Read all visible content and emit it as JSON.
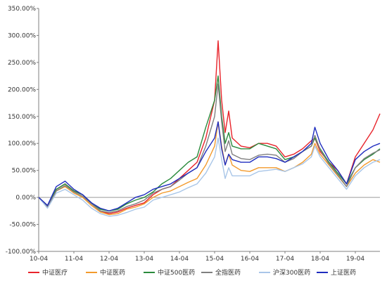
{
  "chart_data": {
    "type": "line",
    "title": "",
    "xlabel": "",
    "ylabel": "",
    "ylim": [
      -100,
      350
    ],
    "y_tick_labels": [
      "350.00%",
      "300.00%",
      "250.00%",
      "200.00%",
      "150.00%",
      "100.00%",
      "50.00%",
      "0.00%",
      "-50.00%",
      "-100.00%"
    ],
    "x_tick_labels": [
      "10-04",
      "11-04",
      "12-04",
      "13-04",
      "14-04",
      "15-04",
      "16-04",
      "17-04",
      "18-04",
      "19-04"
    ],
    "grid": false,
    "legend_position": "bottom",
    "x": [
      2010.25,
      2010.5,
      2010.75,
      2011.0,
      2011.25,
      2011.5,
      2011.75,
      2012.0,
      2012.25,
      2012.5,
      2012.75,
      2013.0,
      2013.25,
      2013.5,
      2013.75,
      2014.0,
      2014.25,
      2014.5,
      2014.75,
      2015.0,
      2015.25,
      2015.35,
      2015.45,
      2015.55,
      2015.65,
      2015.75,
      2016.0,
      2016.25,
      2016.5,
      2016.75,
      2017.0,
      2017.25,
      2017.5,
      2017.75,
      2018.0,
      2018.1,
      2018.25,
      2018.5,
      2018.75,
      2019.0,
      2019.25,
      2019.5,
      2019.75,
      2019.95
    ],
    "series": [
      {
        "name": "中证医疗",
        "color": "#e8242b",
        "values": [
          0,
          -15,
          15,
          25,
          12,
          5,
          -12,
          -25,
          -30,
          -27,
          -20,
          -15,
          -10,
          5,
          15,
          20,
          35,
          50,
          65,
          110,
          180,
          290,
          180,
          120,
          160,
          110,
          95,
          92,
          100,
          100,
          95,
          75,
          80,
          90,
          105,
          110,
          85,
          65,
          50,
          25,
          75,
          100,
          125,
          155
        ]
      },
      {
        "name": "中证医药",
        "color": "#f39a2c",
        "values": [
          0,
          -18,
          12,
          20,
          8,
          0,
          -15,
          -27,
          -32,
          -30,
          -22,
          -18,
          -12,
          0,
          8,
          12,
          20,
          28,
          35,
          60,
          95,
          140,
          95,
          60,
          80,
          60,
          50,
          48,
          55,
          55,
          55,
          48,
          55,
          65,
          80,
          100,
          80,
          60,
          40,
          20,
          45,
          60,
          70,
          65
        ]
      },
      {
        "name": "中证500医药",
        "color": "#2a8a3c",
        "values": [
          0,
          -15,
          15,
          25,
          12,
          5,
          -10,
          -22,
          -25,
          -22,
          -12,
          -5,
          0,
          10,
          25,
          35,
          50,
          65,
          75,
          130,
          180,
          225,
          150,
          100,
          120,
          95,
          90,
          90,
          100,
          95,
          90,
          70,
          75,
          85,
          95,
          110,
          90,
          65,
          45,
          25,
          55,
          70,
          80,
          90
        ]
      },
      {
        "name": "全指医药",
        "color": "#7f7f7f",
        "values": [
          0,
          -17,
          12,
          22,
          10,
          2,
          -12,
          -25,
          -28,
          -25,
          -17,
          -12,
          -5,
          8,
          15,
          20,
          32,
          45,
          55,
          95,
          150,
          210,
          140,
          85,
          105,
          80,
          72,
          70,
          78,
          80,
          78,
          65,
          72,
          85,
          95,
          115,
          88,
          62,
          42,
          20,
          55,
          72,
          82,
          88
        ]
      },
      {
        "name": "沪深300医药",
        "color": "#a9c6e8",
        "values": [
          0,
          -20,
          8,
          15,
          5,
          -5,
          -20,
          -30,
          -35,
          -33,
          -28,
          -22,
          -18,
          -5,
          0,
          5,
          10,
          18,
          25,
          45,
          75,
          110,
          70,
          35,
          55,
          40,
          40,
          40,
          48,
          50,
          52,
          48,
          55,
          62,
          75,
          95,
          75,
          55,
          35,
          15,
          40,
          55,
          65,
          70
        ]
      },
      {
        "name": "上证医药",
        "color": "#1f2dbf",
        "values": [
          0,
          -15,
          20,
          30,
          15,
          5,
          -10,
          -20,
          -25,
          -20,
          -10,
          0,
          5,
          15,
          20,
          25,
          35,
          45,
          55,
          85,
          110,
          140,
          90,
          60,
          80,
          70,
          65,
          65,
          75,
          75,
          72,
          65,
          75,
          85,
          100,
          130,
          100,
          70,
          50,
          25,
          70,
          85,
          95,
          100
        ]
      }
    ]
  }
}
